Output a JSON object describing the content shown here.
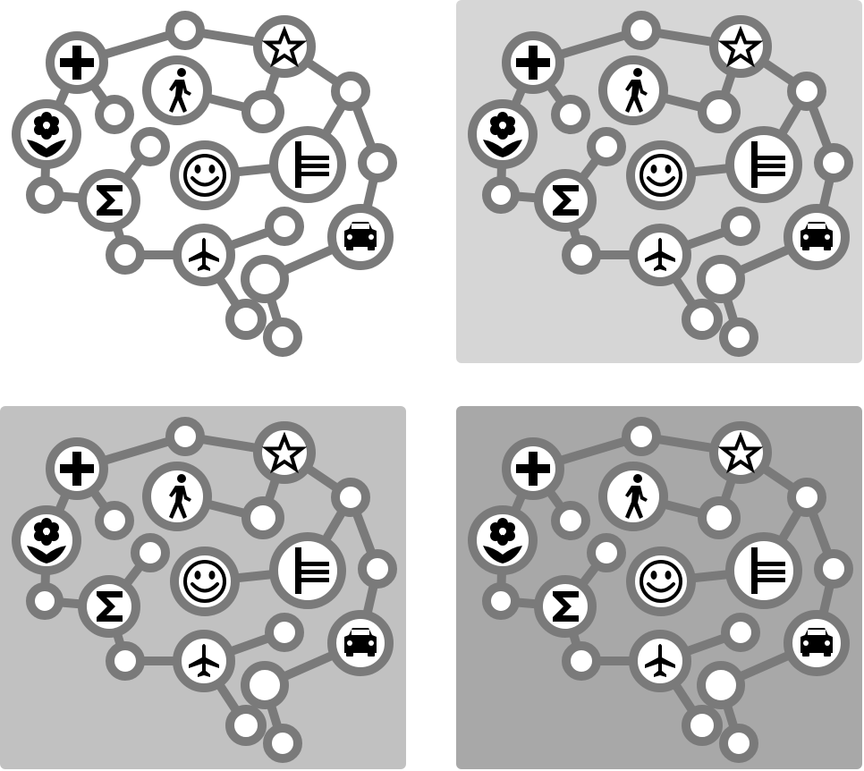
{
  "graphic": {
    "name": "brain-network",
    "icons": [
      "plus-icon",
      "star-icon",
      "flower-icon",
      "walking-person-icon",
      "smiley-face-icon",
      "sigma-icon",
      "tally-bars-icon",
      "car-icon",
      "airplane-icon"
    ]
  },
  "variants": [
    {
      "name": "white-background",
      "background": "#ffffff"
    },
    {
      "name": "light-gray-background",
      "background": "#d6d6d6"
    },
    {
      "name": "medium-gray-background",
      "background": "#c1c1c1"
    },
    {
      "name": "dark-gray-background",
      "background": "#a8a8a8"
    }
  ],
  "colors": {
    "network": "#7a7a7a",
    "icon": "#000000",
    "node_fill": "#ffffff"
  }
}
